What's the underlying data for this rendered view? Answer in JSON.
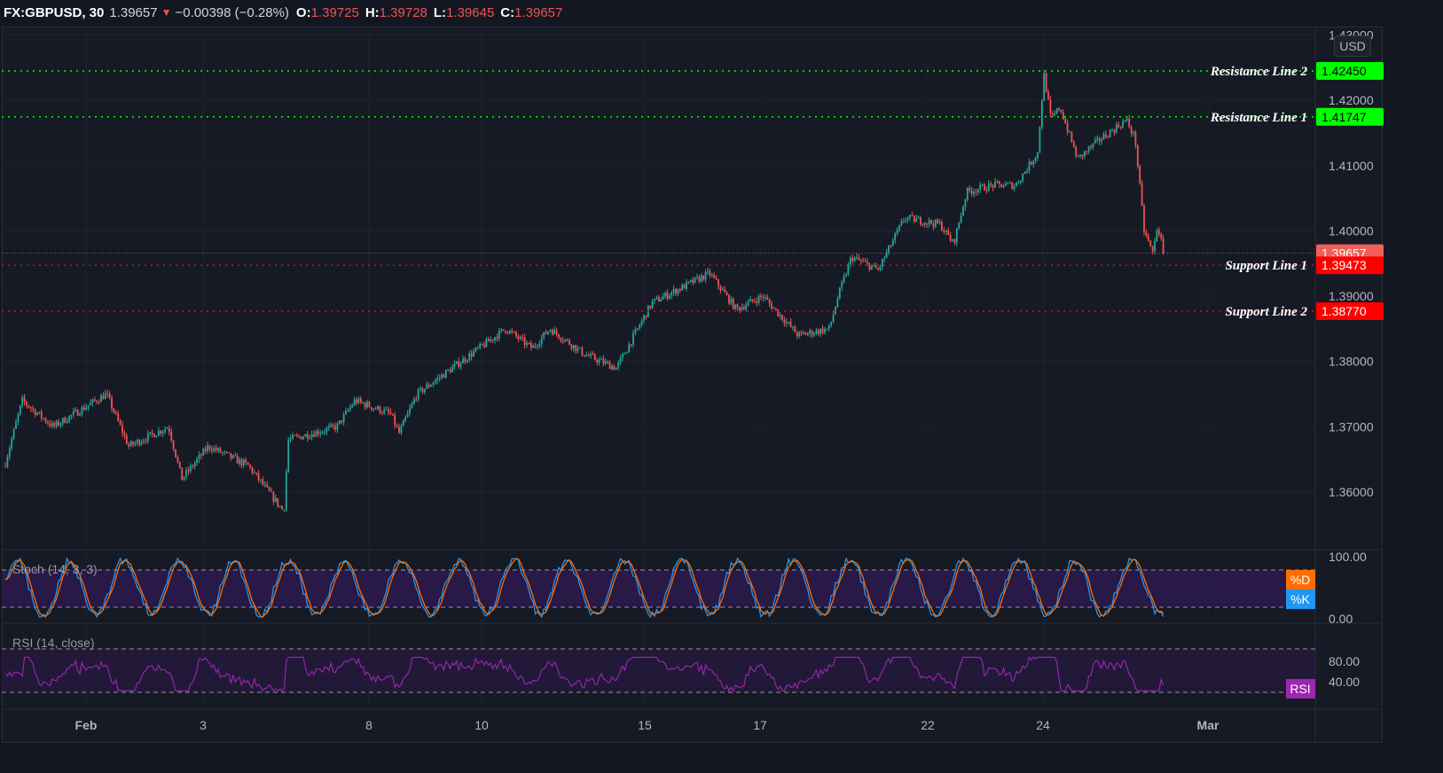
{
  "header": {
    "symbol": "FX:GBPUSD, 30",
    "last": "1.39657",
    "direction_icon": "triangle-down",
    "change": "−0.00398 (−0.28%)",
    "open_label": "O:",
    "open": "1.39725",
    "high_label": "H:",
    "high": "1.39728",
    "low_label": "L:",
    "low": "1.39645",
    "close_label": "C:",
    "close": "1.39657"
  },
  "currency": "USD",
  "colors": {
    "background": "#161a25",
    "up": "#26a69a",
    "down": "#ef5350",
    "resistance": "#00ff00",
    "support": "#ff0000",
    "stoch_k": "#2196f3",
    "stoch_d": "#ff6d00",
    "rsi": "#9c27b0"
  },
  "price_axis": {
    "ticks": [
      "1.43000",
      "1.42000",
      "1.41000",
      "1.40000",
      "1.39000",
      "1.38000",
      "1.37000",
      "1.36000"
    ],
    "current_price": "1.39657"
  },
  "horizontal_lines": [
    {
      "label": "Resistance Line 2",
      "price": "1.42450",
      "type": "resistance"
    },
    {
      "label": "Resistance Line 1",
      "price": "1.41747",
      "type": "resistance"
    },
    {
      "label": "Support Line 1",
      "price": "1.39473",
      "type": "support"
    },
    {
      "label": "Support Line 2",
      "price": "1.38770",
      "type": "support"
    }
  ],
  "time_axis": {
    "ticks": [
      "Feb",
      "3",
      "8",
      "10",
      "15",
      "17",
      "22",
      "24",
      "Mar"
    ]
  },
  "chart_data": {
    "type": "candlestick",
    "symbol": "FX:GBPUSD",
    "interval": "30",
    "ylim": [
      1.3555,
      1.4305
    ],
    "approx_price_path": [
      [
        "Jan 28",
        1.364
      ],
      [
        "Jan 28",
        1.374
      ],
      [
        "Jan 29",
        1.37
      ],
      [
        "Jan 29",
        1.375
      ],
      [
        "Jan 29",
        1.367
      ],
      [
        "Feb 1",
        1.37
      ],
      [
        "Feb 2",
        1.362
      ],
      [
        "Feb 3",
        1.367
      ],
      [
        "Feb 3",
        1.364
      ],
      [
        "Feb 4",
        1.357
      ],
      [
        "Feb 4",
        1.368
      ],
      [
        "Feb 5",
        1.37
      ],
      [
        "Feb 5",
        1.374
      ],
      [
        "Feb 8",
        1.372
      ],
      [
        "Feb 8",
        1.369
      ],
      [
        "Feb 8",
        1.375
      ],
      [
        "Feb 10",
        1.382
      ],
      [
        "Feb 10",
        1.385
      ],
      [
        "Feb 11",
        1.382
      ],
      [
        "Feb 11",
        1.385
      ],
      [
        "Feb 12",
        1.381
      ],
      [
        "Feb 12",
        1.379
      ],
      [
        "Feb 15",
        1.384
      ],
      [
        "Feb 15",
        1.389
      ],
      [
        "Feb 16",
        1.3935
      ],
      [
        "Feb 16",
        1.388
      ],
      [
        "Feb 17",
        1.39
      ],
      [
        "Feb 18",
        1.384
      ],
      [
        "Feb 18",
        1.385
      ],
      [
        "Feb 19",
        1.39
      ],
      [
        "Feb 19",
        1.396
      ],
      [
        "Feb 19",
        1.394
      ],
      [
        "Feb 22",
        1.402
      ],
      [
        "Feb 22",
        1.401
      ],
      [
        "Feb 22",
        1.398
      ],
      [
        "Feb 23",
        1.406
      ],
      [
        "Feb 23",
        1.407
      ],
      [
        "Feb 23",
        1.407
      ],
      [
        "Feb 24",
        1.412
      ],
      [
        "Feb 24",
        1.424
      ],
      [
        "Feb 24",
        1.417
      ],
      [
        "Feb 24",
        1.419
      ],
      [
        "Feb 25",
        1.411
      ],
      [
        "Feb 25",
        1.414
      ],
      [
        "Feb 25",
        1.417
      ],
      [
        "Feb 26",
        1.414
      ],
      [
        "Feb 26",
        1.4
      ],
      [
        "Feb 26",
        1.3965
      ],
      [
        "Feb 26",
        1.401
      ],
      [
        "Feb 26",
        1.3966
      ]
    ]
  },
  "stoch": {
    "title": "Stoch (14, 3, 3)",
    "ticks": [
      "100.00",
      "0.00"
    ],
    "band": [
      20,
      80
    ],
    "k_tag": "%K",
    "d_tag": "%D"
  },
  "rsi": {
    "title": "RSI (14, close)",
    "ticks": [
      "80.00",
      "40.00"
    ],
    "band": [
      30,
      70
    ],
    "tag": "RSI"
  }
}
